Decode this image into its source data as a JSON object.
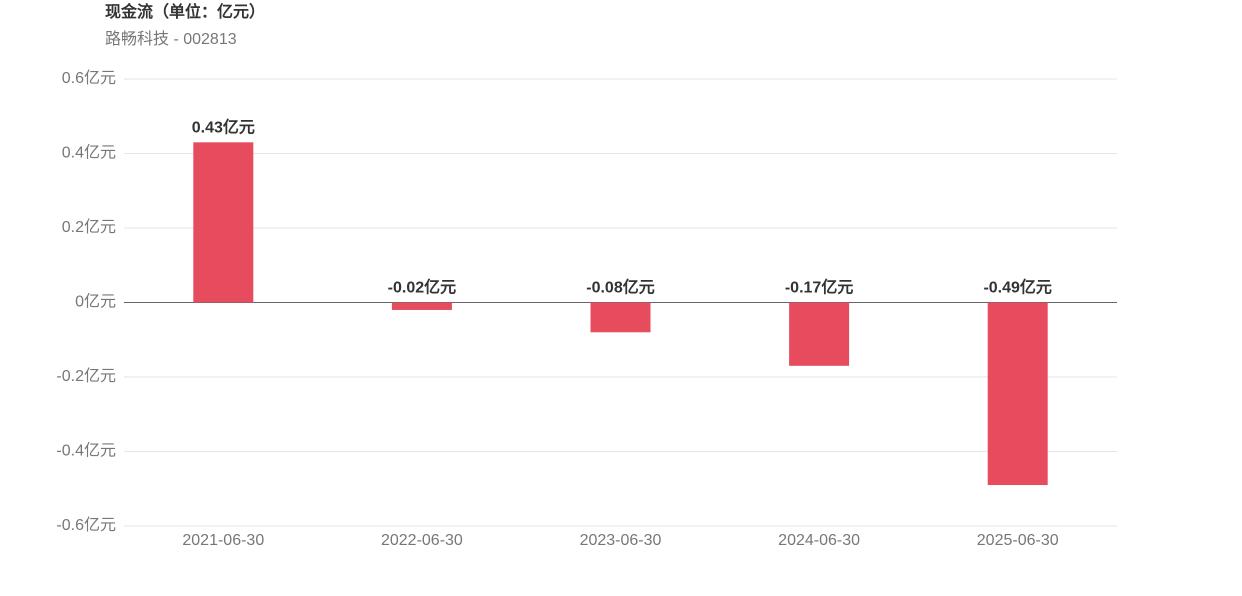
{
  "chart_data": {
    "type": "bar",
    "title": "现金流（单位：亿元）",
    "subtitle": "路畅科技 - 002813",
    "categories": [
      "2021-06-30",
      "2022-06-30",
      "2023-06-30",
      "2024-06-30",
      "2025-06-30"
    ],
    "values": [
      0.43,
      -0.02,
      -0.08,
      -0.17,
      -0.49
    ],
    "value_labels": [
      "0.43亿元",
      "-0.02亿元",
      "-0.08亿元",
      "-0.17亿元",
      "-0.49亿元"
    ],
    "color": "#e64c5e",
    "ylim": [
      -0.6,
      0.6
    ],
    "yticks": [
      {
        "value": 0.6,
        "label": "0.6亿元"
      },
      {
        "value": 0.4,
        "label": "0.4亿元"
      },
      {
        "value": 0.2,
        "label": "0.2亿元"
      },
      {
        "value": 0,
        "label": "0亿元"
      },
      {
        "value": -0.2,
        "label": "-0.2亿元"
      },
      {
        "value": -0.4,
        "label": "-0.4亿元"
      },
      {
        "value": -0.6,
        "label": "-0.6亿元"
      }
    ],
    "grid": true
  }
}
